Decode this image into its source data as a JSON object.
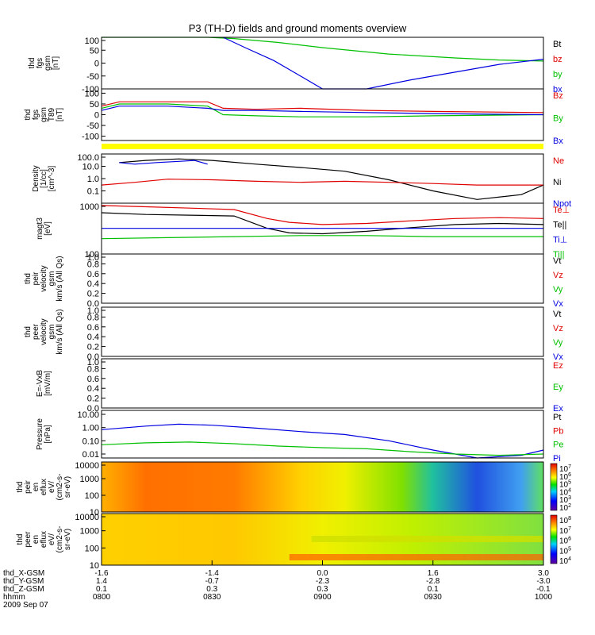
{
  "title": "P3 (TH-D) fields and ground moments overview",
  "chart_data": [
    {
      "type": "line",
      "ylabel": [
        "thd",
        "fgs",
        "gsm",
        "[nT]"
      ],
      "ylim": [
        -100,
        100
      ],
      "yticks": [
        "100",
        "50",
        "0",
        "-50",
        "-100"
      ],
      "legend": [
        {
          "name": "Bt",
          "color": "#000000"
        },
        {
          "name": "bz",
          "color": "#e00000"
        },
        {
          "name": "by",
          "color": "#00c000"
        },
        {
          "name": "bx",
          "color": "#0000e0"
        }
      ],
      "series": [
        {
          "name": "bz",
          "color": "#e00000",
          "x": [],
          "y": []
        },
        {
          "name": "by",
          "color": "#00c000",
          "x": [
            8.0,
            8.05,
            8.12,
            8.2,
            8.3,
            8.42,
            8.47,
            8.48,
            8.6,
            8.8,
            9.0,
            9.3,
            9.6,
            9.8,
            10.0
          ],
          "y": [
            100,
            100,
            100,
            100,
            100,
            100,
            100,
            100,
            95,
            80,
            60,
            35,
            20,
            12,
            8
          ]
        },
        {
          "name": "bx",
          "color": "#0000e0",
          "x": [
            8.55,
            8.65,
            8.78,
            8.88,
            9.0,
            9.2,
            9.4,
            9.6,
            9.8,
            10.0
          ],
          "y": [
            100,
            60,
            10,
            -40,
            -100,
            -100,
            -65,
            -35,
            -5,
            15
          ]
        }
      ]
    },
    {
      "type": "line",
      "ylabel": [
        "thd",
        "fgs",
        "gsm",
        "T89",
        "[nT]"
      ],
      "ylim": [
        -120,
        120
      ],
      "yticks": [
        "100",
        "50",
        "0",
        "-50",
        "-100"
      ],
      "legend": [
        {
          "name": "Bz",
          "color": "#e00000"
        },
        {
          "name": "By",
          "color": "#00c000"
        },
        {
          "name": "Bx",
          "color": "#0000e0"
        }
      ],
      "series": [
        {
          "name": "Bz",
          "color": "#e00000",
          "x": [
            8.0,
            8.08,
            8.14,
            8.3,
            8.48,
            8.55,
            8.7,
            8.9,
            9.2,
            9.5,
            10.0
          ],
          "y": [
            40,
            60,
            60,
            60,
            60,
            30,
            25,
            30,
            20,
            15,
            10
          ]
        },
        {
          "name": "By",
          "color": "#00c000",
          "x": [
            8.0,
            8.08,
            8.14,
            8.3,
            8.48,
            8.55,
            8.7,
            8.9,
            9.2,
            9.5,
            10.0
          ],
          "y": [
            30,
            50,
            50,
            50,
            40,
            0,
            -5,
            -10,
            -10,
            -5,
            0
          ]
        },
        {
          "name": "Bx",
          "color": "#0000e0",
          "x": [
            8.0,
            8.08,
            8.14,
            8.3,
            8.48,
            8.55,
            8.7,
            8.9,
            9.2,
            9.5,
            10.0
          ],
          "y": [
            20,
            40,
            40,
            40,
            30,
            20,
            20,
            15,
            10,
            5,
            0
          ]
        }
      ]
    },
    {
      "type": "line",
      "ylabel": [
        "Density",
        "[1/cc]",
        "[cm^-3]"
      ],
      "ylim": [
        0.01,
        100
      ],
      "scale": "log",
      "yticks": [
        "100.0",
        "10.0",
        "1.0",
        "0.1"
      ],
      "legend": [
        {
          "name": "Ne",
          "color": "#e00000"
        },
        {
          "name": "Ni",
          "color": "#000000"
        },
        {
          "name": "Npot",
          "color": "#0000e0"
        }
      ],
      "series": [
        {
          "name": "Ni",
          "color": "#000000",
          "x": [
            8.08,
            8.2,
            8.35,
            8.5,
            8.7,
            8.9,
            9.1,
            9.3,
            9.5,
            9.7,
            9.9,
            10.0
          ],
          "y": [
            20,
            30,
            40,
            30,
            15,
            8,
            4,
            0.8,
            0.1,
            0.02,
            0.05,
            0.3
          ]
        },
        {
          "name": "Ne",
          "color": "#e00000",
          "x": [
            8.0,
            8.15,
            8.3,
            8.5,
            8.7,
            8.9,
            9.1,
            9.3,
            9.5,
            9.7,
            9.9,
            10.0
          ],
          "y": [
            0.3,
            0.5,
            0.9,
            0.8,
            0.6,
            0.5,
            0.6,
            0.5,
            0.4,
            0.3,
            0.3,
            0.3
          ]
        },
        {
          "name": "Npot",
          "color": "#0000e0",
          "x": [
            8.08,
            8.15,
            8.25,
            8.35,
            8.42,
            8.48
          ],
          "y": [
            20,
            15,
            20,
            25,
            30,
            15
          ]
        }
      ]
    },
    {
      "type": "line",
      "ylabel": [
        "magt3",
        "[eV]"
      ],
      "ylim": [
        100,
        1000
      ],
      "scale": "log",
      "yticks": [
        "1000",
        "100"
      ],
      "legend": [
        {
          "name": "Te⊥",
          "color": "#e00000"
        },
        {
          "name": "Te||",
          "color": "#000000"
        },
        {
          "name": "Ti⊥",
          "color": "#0000e0"
        },
        {
          "name": "Ti||",
          "color": "#00c000"
        }
      ],
      "series": [
        {
          "name": "Te⊥",
          "color": "#e00000",
          "x": [
            8.0,
            8.2,
            8.4,
            8.6,
            8.75,
            8.85,
            9.0,
            9.2,
            9.4,
            9.6,
            9.8,
            10.0
          ],
          "y": [
            900,
            850,
            800,
            750,
            500,
            420,
            380,
            400,
            450,
            500,
            520,
            500
          ]
        },
        {
          "name": "Te||",
          "color": "#000000",
          "x": [
            8.0,
            8.2,
            8.4,
            8.6,
            8.75,
            8.85,
            9.0,
            9.2,
            9.4,
            9.6,
            9.8,
            10.0
          ],
          "y": [
            650,
            600,
            580,
            560,
            320,
            260,
            250,
            280,
            330,
            380,
            400,
            380
          ]
        },
        {
          "name": "Ti⊥",
          "color": "#0000e0",
          "x": [
            8.0,
            8.3,
            8.6,
            8.9,
            9.2,
            9.5,
            10.0
          ],
          "y": [
            320,
            320,
            320,
            320,
            320,
            320,
            320
          ]
        },
        {
          "name": "Ti||",
          "color": "#00c000",
          "x": [
            8.0,
            8.3,
            8.6,
            8.9,
            9.2,
            9.5,
            10.0
          ],
          "y": [
            200,
            210,
            220,
            230,
            230,
            220,
            220
          ]
        }
      ]
    },
    {
      "type": "line",
      "ylabel": [
        "thd",
        "peir",
        "velocity",
        "gsm",
        "km/s (All Qs)"
      ],
      "ylim": [
        0,
        1
      ],
      "yticks": [
        "1.0",
        "0.8",
        "0.6",
        "0.4",
        "0.2",
        "0.0"
      ],
      "legend": [
        {
          "name": "Vt",
          "color": "#000000"
        },
        {
          "name": "Vz",
          "color": "#e00000"
        },
        {
          "name": "Vy",
          "color": "#00c000"
        },
        {
          "name": "Vx",
          "color": "#0000e0"
        }
      ],
      "series": []
    },
    {
      "type": "line",
      "ylabel": [
        "thd",
        "peer",
        "velocity",
        "gsm",
        "km/s (All Qs)"
      ],
      "ylim": [
        0,
        1
      ],
      "yticks": [
        "1.0",
        "0.8",
        "0.6",
        "0.4",
        "0.2",
        "0.0"
      ],
      "legend": [
        {
          "name": "Vt",
          "color": "#000000"
        },
        {
          "name": "Vz",
          "color": "#e00000"
        },
        {
          "name": "Vy",
          "color": "#00c000"
        },
        {
          "name": "Vx",
          "color": "#0000e0"
        }
      ],
      "series": []
    },
    {
      "type": "line",
      "ylabel": [
        "E=-VxB",
        "[mV/m]"
      ],
      "ylim": [
        0,
        1
      ],
      "yticks": [
        "1.0",
        "0.8",
        "0.6",
        "0.4",
        "0.2",
        "0.0"
      ],
      "legend": [
        {
          "name": "Ez",
          "color": "#e00000"
        },
        {
          "name": "Ey",
          "color": "#00c000"
        },
        {
          "name": "Ex",
          "color": "#0000e0"
        }
      ],
      "series": []
    },
    {
      "type": "line",
      "ylabel": [
        "Pressure",
        "[nPa]"
      ],
      "ylim": [
        0.005,
        20
      ],
      "scale": "log",
      "yticks": [
        "10.00",
        "1.00",
        "0.10",
        "0.01"
      ],
      "legend": [
        {
          "name": "Pt",
          "color": "#000000"
        },
        {
          "name": "Pb",
          "color": "#e00000"
        },
        {
          "name": "Pe",
          "color": "#00c000"
        },
        {
          "name": "Pi",
          "color": "#0000e0"
        }
      ],
      "series": [
        {
          "name": "Pi",
          "color": "#0000e0",
          "x": [
            8.0,
            8.2,
            8.35,
            8.5,
            8.7,
            8.9,
            9.1,
            9.3,
            9.5,
            9.7,
            9.9,
            10.0
          ],
          "y": [
            0.7,
            1.3,
            1.8,
            1.5,
            0.9,
            0.5,
            0.3,
            0.1,
            0.02,
            0.005,
            0.008,
            0.02
          ]
        },
        {
          "name": "Pe",
          "color": "#00c000",
          "x": [
            8.0,
            8.2,
            8.4,
            8.6,
            8.8,
            9.0,
            9.2,
            9.4,
            9.6,
            9.8,
            10.0
          ],
          "y": [
            0.05,
            0.07,
            0.08,
            0.06,
            0.04,
            0.03,
            0.025,
            0.015,
            0.01,
            0.008,
            0.01
          ]
        }
      ]
    },
    {
      "type": "heatmap",
      "ylabel": [
        "thd",
        "peir",
        "en",
        "eflux",
        "eV/",
        "(cm2-s-",
        "sr-eV)"
      ],
      "ylim": [
        10,
        10000
      ],
      "scale": "log",
      "yticks": [
        "10000",
        "1000",
        "100",
        "10"
      ],
      "colorbar": {
        "labels": [
          "10^7",
          "10^6",
          "10^5",
          "10^4",
          "10^3",
          "10^2"
        ]
      }
    },
    {
      "type": "heatmap",
      "ylabel": [
        "thd",
        "peer",
        "en",
        "eflux",
        "eV/",
        "(cm2-s-",
        "sr-eV)"
      ],
      "ylim": [
        10,
        10000
      ],
      "scale": "log",
      "yticks": [
        "10000",
        "1000",
        "100",
        "10"
      ],
      "colorbar": {
        "labels": [
          "10^8",
          "10^7",
          "10^6",
          "10^5",
          "10^4"
        ]
      }
    }
  ],
  "xaxis": {
    "rows": [
      {
        "label": "thd_X-GSM",
        "values": [
          "-1.6",
          "-1.4",
          "0.0",
          "1.6",
          "3.0"
        ]
      },
      {
        "label": "thd_Y-GSM",
        "values": [
          "1.4",
          "-0.7",
          "-2.3",
          "-2.8",
          "-3.0"
        ]
      },
      {
        "label": "thd_Z-GSM",
        "values": [
          "0.1",
          "0.3",
          "0.3",
          "0.1",
          "-0.1"
        ]
      },
      {
        "label": "hhmm",
        "values": [
          "0800",
          "0830",
          "0900",
          "0930",
          "1000"
        ]
      }
    ],
    "date": "2009 Sep 07",
    "xlim": [
      8.0,
      10.0
    ]
  }
}
